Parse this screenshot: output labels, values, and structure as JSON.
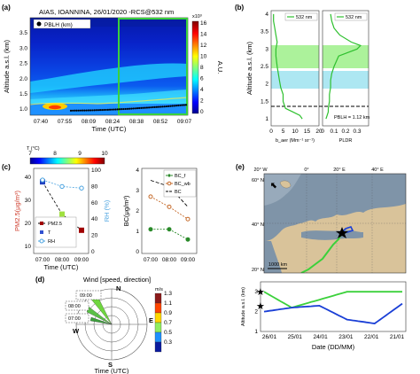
{
  "panel_a": {
    "label": "(a)",
    "title": "AIAS, IOANNINA, 26/01/2020 -RCS@532 nm",
    "legend": "PBLH (km)",
    "ylabel": "Altitude a.s.l. (km)",
    "xlabel": "Time (UTC)",
    "xticks": [
      "07:40",
      "07:55",
      "08:09",
      "08:24",
      "08:38",
      "08:52",
      "09:07"
    ],
    "yticks": [
      "1.0",
      "1.5",
      "2.0",
      "2.5",
      "3.0",
      "3.5"
    ],
    "cbar_ticks": [
      "0",
      "2",
      "4",
      "6",
      "8",
      "10",
      "12",
      "14",
      "16"
    ],
    "cbar_exp": "x10³",
    "cbar_label": "A.U."
  },
  "panel_b": {
    "label": "(b)",
    "ylabel": "Altitude a.s.l. (km)",
    "yticks": [
      "1",
      "1.5",
      "2",
      "2.5",
      "3",
      "3.5",
      "4"
    ],
    "left_legend": "532 nm",
    "right_legend": "532 nm",
    "left_xticks": [
      "0",
      "5",
      "10",
      "15",
      "20"
    ],
    "right_xticks": [
      "0",
      "0.1",
      "0.2",
      "0.3"
    ],
    "left_xlabel": "b_aer (Mm⁻¹ sr⁻¹)",
    "right_xlabel": "PLDR",
    "pblh_text": "PBLH = 1.12 km"
  },
  "panel_c": {
    "label": "(c)",
    "top_axis_label": "T (°C)",
    "t_ticks": [
      "7",
      "8",
      "9",
      "10"
    ],
    "left_ylabel": "PM2.5(μg/m³)",
    "left_yticks": [
      "10",
      "20",
      "30",
      "40"
    ],
    "right_ylabel": "RH (%)",
    "right_yticks": [
      "0",
      "20",
      "40",
      "60",
      "80",
      "100"
    ],
    "xticks": [
      "07:00",
      "08:00",
      "09:00"
    ],
    "xlabel": "Time (UTC)",
    "legend": [
      "PM2.5",
      "T",
      "RH"
    ],
    "bc_ylabel": "BC(μg/m³)",
    "bc_yticks": [
      "0",
      "1",
      "2",
      "3",
      "4"
    ],
    "bc_legend": [
      "BC_f",
      "BC_wb",
      "BC"
    ]
  },
  "panel_d": {
    "label": "(d)",
    "title": "Wind [speed, direction]",
    "times": [
      "09:00",
      "08:00",
      "07:00"
    ],
    "compass": [
      "N",
      "E",
      "S",
      "W"
    ],
    "xlabel": "Time (UTC)",
    "cbar_unit": "m/s",
    "cbar_ticks": [
      "1.3",
      "1.1",
      "0.9",
      "0.7",
      "0.5",
      "0.3"
    ]
  },
  "panel_e": {
    "label": "(e)",
    "lon_ticks": [
      "20° W",
      "0°",
      "20° E",
      "40° E"
    ],
    "lat_ticks": [
      "60° N",
      "40° N",
      "20° N"
    ],
    "scale_text": "1000 km",
    "ylabel": "Altitude a.s.l. (km)",
    "yticks": [
      "3",
      "2",
      "1"
    ],
    "xticks": [
      "26/01",
      "25/01",
      "24/01",
      "23/01",
      "22/01",
      "21/01"
    ],
    "xlabel": "Date (DD/MM)"
  },
  "chart_data": [
    {
      "type": "heatmap",
      "panel": "a",
      "title": "AIAS, IOANNINA, 26/01/2020 -RCS@532 nm",
      "xlabel": "Time (UTC)",
      "ylabel": "Altitude a.s.l. (km)",
      "ylim": [
        0.8,
        4.0
      ],
      "colorbar": {
        "label": "A.U.",
        "range": [
          0,
          16000
        ]
      },
      "series": [
        {
          "name": "PBLH (km)",
          "type": "scatter",
          "x": [
            "07:40",
            "07:55",
            "08:09",
            "08:24",
            "08:38",
            "08:52",
            "09:07"
          ],
          "y": [
            0.95,
            0.96,
            0.98,
            1.01,
            1.05,
            1.09,
            1.14
          ]
        }
      ]
    },
    {
      "type": "line",
      "panel": "b-left",
      "xlabel": "b_aer (Mm⁻¹ sr⁻¹)",
      "ylabel": "Altitude a.s.l. (km)",
      "xlim": [
        0,
        20
      ],
      "ylim": [
        0.8,
        4.1
      ],
      "series": [
        {
          "name": "532 nm",
          "y": [
            1.0,
            1.1,
            1.2,
            1.3,
            1.5,
            1.7,
            1.9,
            2.1,
            2.3,
            2.5,
            2.8,
            3.0,
            3.2,
            3.4,
            3.6,
            3.8,
            4.0
          ],
          "x": [
            13,
            12,
            9,
            6,
            5,
            5,
            4,
            3.5,
            3,
            2.5,
            2,
            2,
            2.5,
            2,
            1.5,
            1,
            1
          ]
        }
      ],
      "shaded_layers_km": [
        [
          1.6,
          2.0
        ],
        [
          2.8,
          3.4
        ]
      ],
      "pblh_km": 1.12
    },
    {
      "type": "line",
      "panel": "b-right",
      "xlabel": "PLDR",
      "xlim": [
        0,
        0.4
      ],
      "ylim": [
        0.8,
        4.1
      ],
      "series": [
        {
          "name": "532 nm",
          "y": [
            1.0,
            1.1,
            1.2,
            1.3,
            1.5,
            1.7,
            1.9,
            2.1,
            2.3,
            2.5,
            2.8,
            3.0,
            3.1,
            3.2,
            3.4,
            3.6,
            3.8,
            4.0
          ],
          "x": [
            0.03,
            0.04,
            0.05,
            0.05,
            0.06,
            0.06,
            0.07,
            0.07,
            0.08,
            0.1,
            0.14,
            0.3,
            0.33,
            0.25,
            0.15,
            0.1,
            0.08,
            0.07
          ]
        }
      ]
    },
    {
      "type": "line",
      "panel": "c-left",
      "xlabel": "Time (UTC)",
      "categories": [
        "07:00",
        "08:00",
        "09:00"
      ],
      "series": [
        {
          "name": "PM2.5",
          "values": [
            38,
            24,
            17
          ]
        },
        {
          "name": "T",
          "values": [
            7.0,
            8.5,
            10.0
          ]
        },
        {
          "name": "RH",
          "values": [
            88,
            80,
            78
          ]
        }
      ]
    },
    {
      "type": "line",
      "panel": "c-right",
      "ylabel": "BC(μg/m³)",
      "categories": [
        "07:00",
        "08:00",
        "09:00"
      ],
      "ylim": [
        0,
        4
      ],
      "series": [
        {
          "name": "BC_f",
          "values": [
            1.1,
            1.1,
            0.6
          ]
        },
        {
          "name": "BC_wb",
          "values": [
            2.7,
            2.2,
            1.6
          ]
        },
        {
          "name": "BC",
          "values": [
            3.5,
            3.2,
            2.2
          ]
        }
      ]
    },
    {
      "type": "line",
      "panel": "e-bottom",
      "xlabel": "Date (DD/MM)",
      "ylabel": "Altitude a.s.l. (km)",
      "ylim": [
        1,
        3.5
      ],
      "x": [
        "26/01",
        "25/01",
        "24/01",
        "23/01",
        "22/01",
        "21/01"
      ],
      "series": [
        {
          "name": "green",
          "values": [
            3.0,
            2.2,
            2.6,
            3.0,
            3.0,
            3.0
          ]
        },
        {
          "name": "blue",
          "values": [
            2.0,
            2.2,
            2.3,
            1.6,
            1.4,
            2.4
          ]
        }
      ]
    }
  ]
}
